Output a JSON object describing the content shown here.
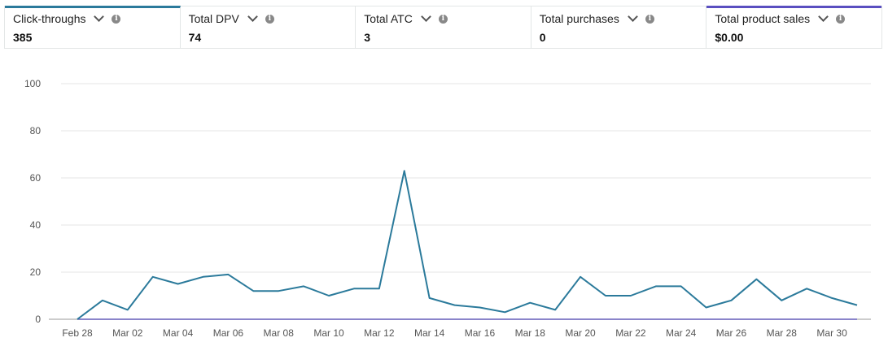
{
  "metrics": [
    {
      "label": "Click-throughs",
      "value": "385"
    },
    {
      "label": "Total DPV",
      "value": "74"
    },
    {
      "label": "Total ATC",
      "value": "3"
    },
    {
      "label": "Total purchases",
      "value": "0"
    },
    {
      "label": "Total product sales",
      "value": "$0.00"
    }
  ],
  "colors": {
    "clicks": "#2b7a9b",
    "sales": "#5a4fc0",
    "grid": "#e6e6e6",
    "axis": "#bbbbbb"
  },
  "chart_data": {
    "type": "line",
    "ylim": [
      0,
      100
    ],
    "yticks": [
      "0",
      "20",
      "40",
      "60",
      "80",
      "100"
    ],
    "xtick_labels": [
      "Feb 28",
      "Mar 02",
      "Mar 04",
      "Mar 06",
      "Mar 08",
      "Mar 10",
      "Mar 12",
      "Mar 14",
      "Mar 16",
      "Mar 18",
      "Mar 20",
      "Mar 22",
      "Mar 24",
      "Mar 26",
      "Mar 28",
      "Mar 30"
    ],
    "x": [
      "Feb 28",
      "Mar 01",
      "Mar 02",
      "Mar 03",
      "Mar 04",
      "Mar 05",
      "Mar 06",
      "Mar 07",
      "Mar 08",
      "Mar 09",
      "Mar 10",
      "Mar 11",
      "Mar 12",
      "Mar 13",
      "Mar 14",
      "Mar 15",
      "Mar 16",
      "Mar 17",
      "Mar 18",
      "Mar 19",
      "Mar 20",
      "Mar 21",
      "Mar 22",
      "Mar 23",
      "Mar 24",
      "Mar 25",
      "Mar 26",
      "Mar 27",
      "Mar 28",
      "Mar 29",
      "Mar 30",
      "Mar 31"
    ],
    "series": [
      {
        "name": "Click-throughs",
        "values": [
          0,
          8,
          4,
          18,
          15,
          18,
          19,
          12,
          12,
          14,
          10,
          13,
          13,
          63,
          9,
          6,
          5,
          3,
          7,
          4,
          18,
          10,
          10,
          14,
          14,
          5,
          8,
          17,
          8,
          13,
          9,
          6
        ]
      },
      {
        "name": "Total product sales",
        "values": [
          0,
          0,
          0,
          0,
          0,
          0,
          0,
          0,
          0,
          0,
          0,
          0,
          0,
          0,
          0,
          0,
          0,
          0,
          0,
          0,
          0,
          0,
          0,
          0,
          0,
          0,
          0,
          0,
          0,
          0,
          0,
          0
        ]
      }
    ],
    "grid": true
  }
}
